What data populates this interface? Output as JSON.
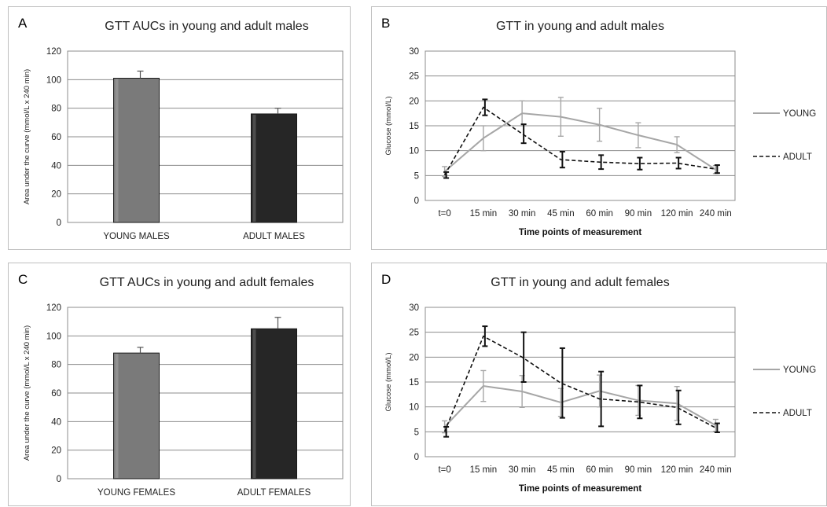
{
  "chart_data": [
    {
      "id": "A",
      "panel_letter": "A",
      "type": "bar",
      "title": "GTT AUCs in young and adult males",
      "ylabel": "Area under the curve (mmol/L x 240 min)",
      "xlabel": "",
      "ylim": [
        0,
        120
      ],
      "yticks": [
        0,
        20,
        40,
        60,
        80,
        100,
        120
      ],
      "grid": true,
      "categories": [
        "YOUNG MALES",
        "ADULT MALES"
      ],
      "values": [
        101,
        76
      ],
      "errors": [
        5,
        4
      ],
      "colors": [
        "#7a7a7a",
        "#262626"
      ]
    },
    {
      "id": "B",
      "panel_letter": "B",
      "type": "line",
      "title": "GTT in young and adult males",
      "ylabel": "Glucose (mmol/L)",
      "xlabel": "Time points of measurement",
      "ylim": [
        0,
        30
      ],
      "yticks": [
        0,
        5,
        10,
        15,
        20,
        25,
        30
      ],
      "grid": true,
      "legend_position": "right",
      "x": [
        "t=0",
        "15 min",
        "30 min",
        "45 min",
        "60 min",
        "90 min",
        "120 min",
        "240 min"
      ],
      "series": [
        {
          "name": "YOUNG",
          "color": "#a6a6a6",
          "dashed": false,
          "values": [
            5.8,
            12.5,
            17.5,
            16.8,
            15.2,
            13.1,
            11.2,
            6.2
          ],
          "errors": [
            1.0,
            2.5,
            2.5,
            3.9,
            3.3,
            2.5,
            1.6,
            0.8
          ]
        },
        {
          "name": "ADULT",
          "color": "#111111",
          "dashed": true,
          "values": [
            5.1,
            18.7,
            13.4,
            8.2,
            7.7,
            7.4,
            7.5,
            6.3
          ],
          "errors": [
            0.6,
            1.6,
            1.9,
            1.6,
            1.4,
            1.2,
            1.1,
            0.8
          ]
        }
      ]
    },
    {
      "id": "C",
      "panel_letter": "C",
      "type": "bar",
      "title": "GTT AUCs in young and adult females",
      "ylabel": "Area under the curve (mmol/L x 240 min)",
      "xlabel": "",
      "ylim": [
        0,
        120
      ],
      "yticks": [
        0,
        20,
        40,
        60,
        80,
        100,
        120
      ],
      "grid": true,
      "categories": [
        "YOUNG FEMALES",
        "ADULT FEMALES"
      ],
      "values": [
        88,
        105
      ],
      "errors": [
        4,
        8
      ],
      "colors": [
        "#7a7a7a",
        "#262626"
      ]
    },
    {
      "id": "D",
      "panel_letter": "D",
      "type": "line",
      "title": "GTT in young and adult females",
      "ylabel": "Glucose (mmol/L)",
      "xlabel": "Time points of measurement",
      "ylim": [
        0,
        30
      ],
      "yticks": [
        0,
        5,
        10,
        15,
        20,
        25,
        30
      ],
      "grid": true,
      "legend_position": "right",
      "x": [
        "t=0",
        "15 min",
        "30 min",
        "45 min",
        "60 min",
        "90 min",
        "120 min",
        "240 min"
      ],
      "series": [
        {
          "name": "YOUNG",
          "color": "#a6a6a6",
          "dashed": false,
          "values": [
            6.0,
            14.2,
            13.1,
            10.9,
            13.2,
            11.3,
            10.7,
            6.3
          ],
          "errors": [
            1.2,
            3.1,
            3.2,
            2.8,
            3.2,
            3.0,
            3.4,
            1.2
          ]
        },
        {
          "name": "ADULT",
          "color": "#111111",
          "dashed": true,
          "values": [
            5.0,
            24.2,
            20.0,
            14.8,
            11.6,
            11.0,
            9.9,
            5.8
          ],
          "errors": [
            1.0,
            2.0,
            5.0,
            7.0,
            5.5,
            3.3,
            3.4,
            0.9
          ]
        }
      ]
    }
  ]
}
